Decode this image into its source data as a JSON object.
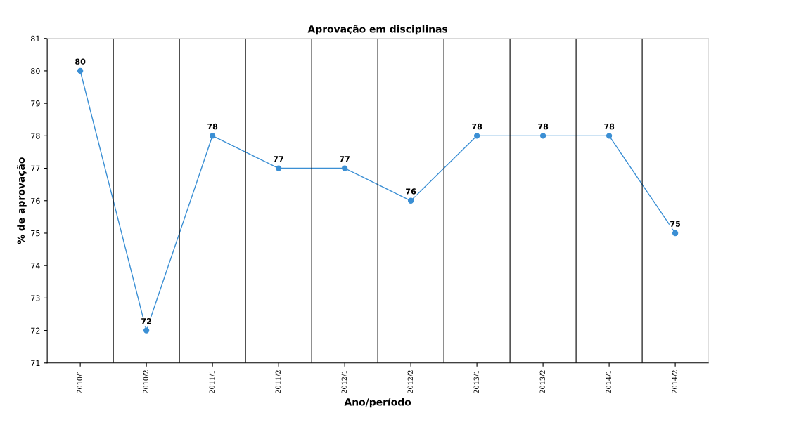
{
  "chart_data": {
    "type": "line",
    "title": "Aprovação em disciplinas",
    "xlabel": "Ano/período",
    "ylabel": "% de aprovação",
    "categories": [
      "2010/1",
      "2010/2",
      "2011/1",
      "2011/2",
      "2012/1",
      "2012/2",
      "2013/1",
      "2013/2",
      "2014/1",
      "2014/2"
    ],
    "values": [
      80,
      72,
      78,
      77,
      77,
      76,
      78,
      78,
      78,
      75
    ],
    "color": "#3b8fd4",
    "marker": "circle",
    "line_style": "solid",
    "data_labels": true,
    "grid": "x",
    "ylim": [
      71,
      81
    ],
    "yticks": [
      71,
      72,
      73,
      74,
      75,
      76,
      77,
      78,
      79,
      80,
      81
    ]
  }
}
